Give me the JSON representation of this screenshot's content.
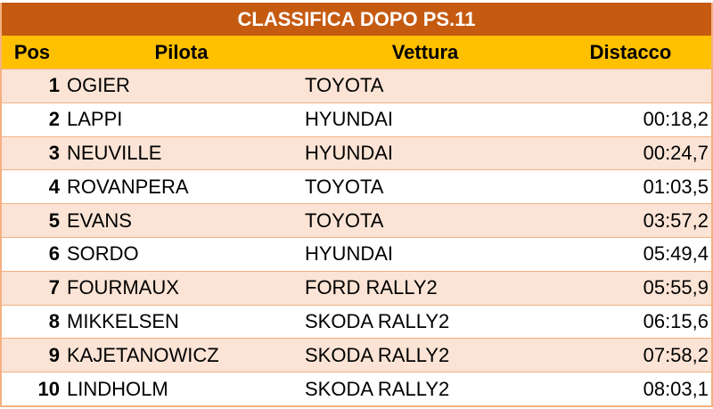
{
  "table": {
    "title": "CLASSIFICA DOPO PS.11",
    "columns": [
      "Pos",
      "Pilota",
      "Vettura",
      "Distacco"
    ],
    "rows": [
      [
        1,
        "OGIER",
        "TOYOTA",
        null
      ],
      [
        2,
        "LAPPI",
        "HYUNDAI",
        "00:18,2"
      ],
      [
        3,
        "NEUVILLE",
        "HYUNDAI",
        "00:24,7"
      ],
      [
        4,
        "ROVANPERA",
        "TOYOTA",
        "01:03,5"
      ],
      [
        5,
        "EVANS",
        "TOYOTA",
        "03:57,2"
      ],
      [
        6,
        "SORDO",
        "HYUNDAI",
        "05:49,4"
      ],
      [
        7,
        "FOURMAUX",
        "FORD RALLY2",
        "05:55,9"
      ],
      [
        8,
        "MIKKELSEN",
        "SKODA RALLY2",
        "06:15,6"
      ],
      [
        9,
        "KAJETANOWICZ",
        "SKODA RALLY2",
        "07:58,2"
      ],
      [
        10,
        "LINDHOLM",
        "SKODA RALLY2",
        "08:03,1"
      ]
    ]
  }
}
